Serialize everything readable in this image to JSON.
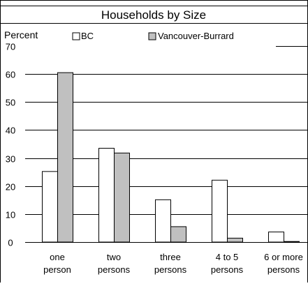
{
  "chart_data": {
    "type": "bar",
    "title": "Households by Size",
    "ylabel": "Percent",
    "xlabel": "",
    "ylim": [
      0,
      70
    ],
    "yticks": [
      "0",
      "10",
      "20",
      "30",
      "40",
      "50",
      "60",
      "70"
    ],
    "grid": true,
    "legend": "top",
    "categories": [
      [
        "one",
        "person"
      ],
      [
        "two",
        "persons"
      ],
      [
        "three",
        "persons"
      ],
      [
        "4 to 5",
        "persons"
      ],
      [
        "6 or more",
        "persons"
      ]
    ],
    "series": [
      {
        "name": "BC",
        "values": [
          25.2,
          33.5,
          15.1,
          22.1,
          3.6
        ],
        "color": "#ffffff"
      },
      {
        "name": "Vancouver-Burrard",
        "values": [
          60.5,
          31.8,
          5.5,
          1.4,
          0.2
        ],
        "color": "#c0c0c0"
      }
    ]
  }
}
